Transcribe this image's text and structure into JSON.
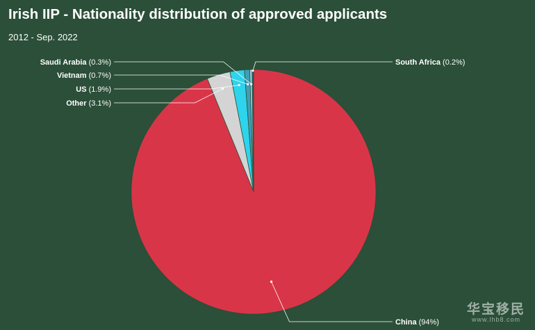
{
  "header": {
    "title": "Irish IIP - Nationality distribution of approved applicants",
    "subtitle": "2012 - Sep. 2022"
  },
  "watermark": {
    "brand": "华宝移民",
    "url": "www.lhb8.com"
  },
  "chart_data": {
    "type": "pie",
    "title": "Irish IIP - Nationality distribution of approved applicants",
    "subtitle": "2012 - Sep. 2022",
    "slices": [
      {
        "name": "China",
        "pct_label": "(94%)",
        "value": 94,
        "color": "#d93548",
        "label_side": "right"
      },
      {
        "name": "Other",
        "pct_label": "(3.1%)",
        "value": 3.1,
        "color": "#d4d4d4",
        "label_side": "left"
      },
      {
        "name": "US",
        "pct_label": "(1.9%)",
        "value": 1.9,
        "color": "#2ed3ec",
        "label_side": "left"
      },
      {
        "name": "Vietnam",
        "pct_label": "(0.7%)",
        "value": 0.7,
        "color": "#3e9fb8",
        "label_side": "left"
      },
      {
        "name": "Saudi Arabia",
        "pct_label": "(0.3%)",
        "value": 0.3,
        "color": "#a8d0dc",
        "label_side": "left"
      },
      {
        "name": "South Africa",
        "pct_label": "(0.2%)",
        "value": 0.2,
        "color": "#1e6272",
        "label_side": "right"
      }
    ]
  }
}
